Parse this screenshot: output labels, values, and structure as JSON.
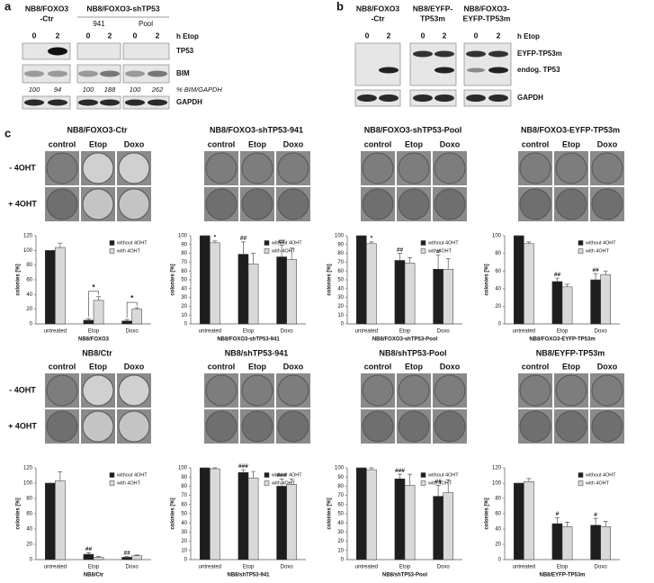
{
  "panel_a": {
    "letter": "a",
    "groups": [
      {
        "label": [
          "NB8/FOXO3",
          "-Ctr"
        ]
      },
      {
        "label": [
          "NB8/FOXO3-shTP53"
        ],
        "sublabels": [
          "941",
          "Pool"
        ]
      }
    ],
    "lanes": [
      "0",
      "2",
      "0",
      "2",
      "0",
      "2"
    ],
    "time_label": "h Etop",
    "rows": [
      "TP53",
      "BIM",
      "GAPDH"
    ],
    "quant": {
      "values": [
        100,
        94,
        100,
        188,
        100,
        262
      ],
      "label": "% BIM/GAPDH"
    }
  },
  "panel_b": {
    "letter": "b",
    "groups": [
      {
        "label": [
          "NB8/FOXO3",
          "-Ctr"
        ]
      },
      {
        "label": [
          "NB8/EYFP-",
          "TP53m"
        ]
      },
      {
        "label": [
          "NB8/FOXO3-",
          "EYFP-TP53m"
        ]
      }
    ],
    "lanes": [
      "0",
      "2",
      "0",
      "2",
      "0",
      "2"
    ],
    "time_label": "h Etop",
    "rows": [
      "EYFP-TP53m",
      "endog. TP53",
      "GAPDH"
    ]
  },
  "panel_c": {
    "letter": "c",
    "row_labels": [
      "- 4OHT",
      "+ 4OHT"
    ]
  },
  "chart_data": [
    {
      "type": "bar",
      "heading": "NB8/FOXO3-Ctr",
      "photo_columns": [
        "control",
        "Etop",
        "Doxo"
      ],
      "categories": [
        "untreated",
        "Etop",
        "Doxo"
      ],
      "xlabel": "NB8/FOXO3",
      "ylabel": "colonies [%]",
      "ylim": [
        0,
        120
      ],
      "yticks": [
        0,
        20,
        40,
        60,
        80,
        100,
        120
      ],
      "series": [
        {
          "name": "without 4OHT",
          "color": "#1e1e1e",
          "values": [
            100,
            5,
            4
          ],
          "errors": [
            0,
            2,
            2
          ]
        },
        {
          "name": "with 4OHT",
          "color": "#d9d9d9",
          "values": [
            104,
            32,
            20
          ],
          "errors": [
            6,
            5,
            2
          ]
        }
      ],
      "annotations": [
        {
          "text": "*",
          "category": 1,
          "bracket": true
        },
        {
          "text": "*",
          "category": 2,
          "bracket": true
        }
      ]
    },
    {
      "type": "bar",
      "heading": "NB8/FOXO3-shTP53-941",
      "photo_columns": [
        "control",
        "Etop",
        "Doxo"
      ],
      "categories": [
        "untreated",
        "Etop",
        "Doxo"
      ],
      "xlabel": "NB8/FOXO3-shTP53-941",
      "ylabel": "colonies [%]",
      "ylim": [
        0,
        100
      ],
      "yticks": [
        0,
        10,
        20,
        30,
        40,
        50,
        60,
        70,
        80,
        90,
        100
      ],
      "series": [
        {
          "name": "without 4OHT",
          "color": "#1e1e1e",
          "values": [
            100,
            79,
            76
          ],
          "errors": [
            0,
            14,
            13
          ]
        },
        {
          "name": "with 4OHT",
          "color": "#d9d9d9",
          "values": [
            92,
            68,
            73
          ],
          "errors": [
            2,
            12,
            13
          ]
        }
      ],
      "annotations": [
        {
          "text": "*",
          "category": 0,
          "series": 1
        },
        {
          "text": "##",
          "category": 1,
          "series": 0
        },
        {
          "text": "##",
          "category": 2,
          "series": 0
        }
      ]
    },
    {
      "type": "bar",
      "heading": "NB8/FOXO3-shTP53-Pool",
      "photo_columns": [
        "control",
        "Etop",
        "Doxo"
      ],
      "categories": [
        "untreated",
        "Etop",
        "Doxo"
      ],
      "xlabel": "NB8/FOXO3-shTP53-Pool",
      "ylabel": "colonies [%]",
      "ylim": [
        0,
        100
      ],
      "yticks": [
        0,
        10,
        20,
        30,
        40,
        50,
        60,
        70,
        80,
        90,
        100
      ],
      "series": [
        {
          "name": "without 4OHT",
          "color": "#1e1e1e",
          "values": [
            100,
            72,
            62
          ],
          "errors": [
            0,
            8,
            16
          ]
        },
        {
          "name": "with 4OHT",
          "color": "#d9d9d9",
          "values": [
            91,
            69,
            62
          ],
          "errors": [
            2,
            6,
            12
          ]
        }
      ],
      "annotations": [
        {
          "text": "*",
          "category": 0,
          "series": 1
        },
        {
          "text": "##",
          "category": 1,
          "series": 0
        },
        {
          "text": "#",
          "category": 2,
          "series": 0
        }
      ]
    },
    {
      "type": "bar",
      "heading": "NB8/FOXO3-EYFP-TP53m",
      "photo_columns": [
        "control",
        "Etop",
        "Doxo"
      ],
      "categories": [
        "untreated",
        "Etop",
        "Doxo"
      ],
      "xlabel": "NB8/FOXO3-EYFP-TP53m",
      "ylabel": "colonies [%]",
      "ylim": [
        0,
        100
      ],
      "yticks": [
        0,
        20,
        40,
        60,
        80,
        100
      ],
      "series": [
        {
          "name": "without 4OHT",
          "color": "#1e1e1e",
          "values": [
            100,
            48,
            50
          ],
          "errors": [
            0,
            4,
            7
          ]
        },
        {
          "name": "with 4OHT",
          "color": "#d9d9d9",
          "values": [
            91,
            42,
            56
          ],
          "errors": [
            2,
            3,
            4
          ]
        }
      ],
      "annotations": [
        {
          "text": "##",
          "category": 1,
          "series": 0
        },
        {
          "text": "##",
          "category": 2,
          "series": 0
        }
      ]
    },
    {
      "type": "bar",
      "heading": "NB8/Ctr",
      "photo_columns": [
        "control",
        "Etop",
        "Doxo"
      ],
      "categories": [
        "untreated",
        "Etop",
        "Doxo"
      ],
      "xlabel": "NB8/Ctr",
      "ylabel": "colonies [%]",
      "ylim": [
        0,
        120
      ],
      "yticks": [
        0,
        20,
        40,
        60,
        80,
        100,
        120
      ],
      "series": [
        {
          "name": "without 4OHT",
          "color": "#1e1e1e",
          "values": [
            100,
            7,
            3
          ],
          "errors": [
            0,
            2,
            1
          ]
        },
        {
          "name": "with 4OHT",
          "color": "#d9d9d9",
          "values": [
            103,
            3,
            5
          ],
          "errors": [
            12,
            1,
            1
          ]
        }
      ],
      "annotations": [
        {
          "text": "##",
          "category": 1,
          "series": 0
        },
        {
          "text": "##",
          "category": 2,
          "series": 0
        }
      ]
    },
    {
      "type": "bar",
      "heading": "NB8/shTP53-941",
      "photo_columns": [
        "control",
        "Etop",
        "Doxo"
      ],
      "categories": [
        "untreated",
        "Etop",
        "Doxo"
      ],
      "xlabel": "NB8/shTP53-941",
      "ylabel": "colonies [%]",
      "ylim": [
        0,
        100
      ],
      "yticks": [
        0,
        10,
        20,
        30,
        40,
        50,
        60,
        70,
        80,
        90,
        100
      ],
      "series": [
        {
          "name": "without 4OHT",
          "color": "#1e1e1e",
          "values": [
            100,
            95,
            80
          ],
          "errors": [
            0,
            3,
            8
          ]
        },
        {
          "name": "with 4OHT",
          "color": "#d9d9d9",
          "values": [
            99,
            89,
            82
          ],
          "errors": [
            1,
            7,
            6
          ]
        }
      ],
      "annotations": [
        {
          "text": "###",
          "category": 1,
          "series": 0
        },
        {
          "text": "###",
          "category": 2,
          "series": 0
        }
      ]
    },
    {
      "type": "bar",
      "heading": "NB8/shTP53-Pool",
      "photo_columns": [
        "control",
        "Etop",
        "Doxo"
      ],
      "categories": [
        "untreated",
        "Etop",
        "Doxo"
      ],
      "xlabel": "NB8/shTP53-Pool",
      "ylabel": "colonies [%]",
      "ylim": [
        0,
        100
      ],
      "yticks": [
        0,
        10,
        20,
        30,
        40,
        50,
        60,
        70,
        80,
        90,
        100
      ],
      "series": [
        {
          "name": "without 4OHT",
          "color": "#1e1e1e",
          "values": [
            100,
            88,
            69
          ],
          "errors": [
            0,
            5,
            12
          ]
        },
        {
          "name": "with 4OHT",
          "color": "#d9d9d9",
          "values": [
            98,
            81,
            73
          ],
          "errors": [
            2,
            12,
            14
          ]
        }
      ],
      "annotations": [
        {
          "text": "###",
          "category": 1,
          "series": 0
        },
        {
          "text": "##",
          "category": 2,
          "series": 0
        }
      ]
    },
    {
      "type": "bar",
      "heading": "NB8/EYFP-TP53m",
      "photo_columns": [
        "control",
        "Etop",
        "Doxo"
      ],
      "categories": [
        "untreated",
        "Etop",
        "Doxo"
      ],
      "xlabel": "NB8/EYFP-TP53m",
      "ylabel": "colonies [%]",
      "ylim": [
        0,
        120
      ],
      "yticks": [
        0,
        20,
        40,
        60,
        80,
        100,
        120
      ],
      "series": [
        {
          "name": "without 4OHT",
          "color": "#1e1e1e",
          "values": [
            100,
            47,
            45
          ],
          "errors": [
            0,
            8,
            9
          ]
        },
        {
          "name": "with 4OHT",
          "color": "#d9d9d9",
          "values": [
            102,
            43,
            43
          ],
          "errors": [
            4,
            6,
            7
          ]
        }
      ],
      "annotations": [
        {
          "text": "#",
          "category": 1,
          "series": 0
        },
        {
          "text": "#",
          "category": 2,
          "series": 0
        }
      ]
    }
  ]
}
